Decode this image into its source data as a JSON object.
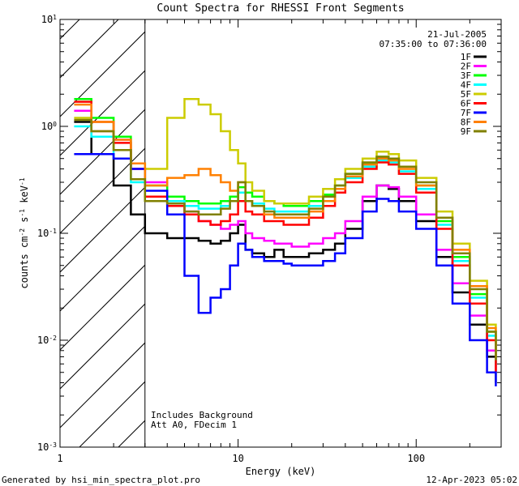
{
  "chart_data": {
    "type": "line",
    "title": "Count Spectra for RHESSI Front Segments",
    "xlabel": "Energy (keV)",
    "ylabel": "counts cm⁻² s⁻¹ keV⁻¹",
    "xscale": "log",
    "yscale": "log",
    "xlim": [
      1,
      300
    ],
    "ylim": [
      0.001,
      10
    ],
    "x_tick_labels": [
      "1",
      "10",
      "100"
    ],
    "y_tick_labels": [
      "10⁻³",
      "10⁻²",
      "10⁻¹",
      "10⁰",
      "10¹"
    ],
    "hatched_region_kev": [
      1,
      3
    ],
    "date": "21-Jul-2005",
    "time_range": "07:35:00 to 07:36:00",
    "legend_position": "top-right",
    "annotations": [
      "Includes Background",
      "Att A0, FDecim 1"
    ],
    "footer_left": "Generated by hsi_min_spectra_plot.pro",
    "footer_right": "12-Apr-2023 05:02",
    "series": [
      {
        "name": "1F",
        "color": "#000000",
        "x": [
          1.2,
          1.5,
          2,
          2.5,
          3,
          4,
          5,
          6,
          7,
          8,
          9,
          10,
          11,
          12,
          14,
          16,
          18,
          20,
          25,
          30,
          35,
          40,
          50,
          60,
          70,
          80,
          100,
          130,
          160,
          200,
          250,
          280
        ],
        "y": [
          1.1,
          0.55,
          0.28,
          0.15,
          0.1,
          0.09,
          0.09,
          0.085,
          0.08,
          0.085,
          0.1,
          0.12,
          0.07,
          0.065,
          0.06,
          0.07,
          0.06,
          0.06,
          0.065,
          0.07,
          0.08,
          0.11,
          0.2,
          0.28,
          0.26,
          0.2,
          0.13,
          0.06,
          0.028,
          0.014,
          0.007,
          0.004
        ]
      },
      {
        "name": "2F",
        "color": "#ff00ff",
        "x": [
          1.2,
          1.5,
          2,
          2.5,
          3,
          4,
          5,
          6,
          7,
          8,
          9,
          10,
          11,
          12,
          14,
          16,
          18,
          20,
          25,
          30,
          35,
          40,
          50,
          60,
          70,
          80,
          100,
          130,
          160,
          200,
          250,
          280
        ],
        "y": [
          1.4,
          0.9,
          0.75,
          0.4,
          0.3,
          0.19,
          0.16,
          0.13,
          0.12,
          0.11,
          0.12,
          0.13,
          0.1,
          0.09,
          0.085,
          0.08,
          0.08,
          0.075,
          0.08,
          0.09,
          0.1,
          0.13,
          0.22,
          0.28,
          0.27,
          0.22,
          0.15,
          0.07,
          0.034,
          0.017,
          0.008,
          0.005
        ]
      },
      {
        "name": "3F",
        "color": "#00ff00",
        "x": [
          1.2,
          1.5,
          2,
          2.5,
          3,
          4,
          5,
          6,
          7,
          8,
          9,
          10,
          11,
          12,
          14,
          16,
          18,
          20,
          25,
          30,
          35,
          40,
          50,
          60,
          70,
          80,
          100,
          130,
          160,
          200,
          250,
          280
        ],
        "y": [
          1.8,
          1.2,
          0.8,
          0.45,
          0.28,
          0.22,
          0.2,
          0.19,
          0.19,
          0.2,
          0.22,
          0.27,
          0.24,
          0.22,
          0.2,
          0.19,
          0.18,
          0.18,
          0.2,
          0.23,
          0.28,
          0.36,
          0.45,
          0.52,
          0.5,
          0.42,
          0.28,
          0.13,
          0.06,
          0.027,
          0.012,
          0.006
        ]
      },
      {
        "name": "4F",
        "color": "#00ffff",
        "x": [
          1.2,
          1.5,
          2,
          2.5,
          3,
          4,
          5,
          6,
          7,
          8,
          9,
          10,
          11,
          12,
          14,
          16,
          18,
          20,
          25,
          30,
          35,
          40,
          50,
          60,
          70,
          80,
          100,
          130,
          160,
          200,
          250,
          280
        ],
        "y": [
          1.0,
          0.8,
          0.5,
          0.3,
          0.2,
          0.2,
          0.18,
          0.17,
          0.17,
          0.18,
          0.2,
          0.24,
          0.2,
          0.19,
          0.17,
          0.16,
          0.16,
          0.16,
          0.18,
          0.22,
          0.26,
          0.33,
          0.42,
          0.48,
          0.46,
          0.38,
          0.26,
          0.12,
          0.055,
          0.025,
          0.011,
          0.006
        ]
      },
      {
        "name": "5F",
        "color": "#cccc00",
        "x": [
          1.2,
          1.5,
          2,
          2.5,
          3,
          4,
          5,
          6,
          7,
          8,
          9,
          10,
          11,
          12,
          14,
          16,
          18,
          20,
          25,
          30,
          35,
          40,
          50,
          60,
          70,
          80,
          100,
          130,
          160,
          200,
          250,
          280
        ],
        "y": [
          1.2,
          0.9,
          0.6,
          0.45,
          0.4,
          1.2,
          1.8,
          1.6,
          1.3,
          0.9,
          0.6,
          0.45,
          0.3,
          0.25,
          0.2,
          0.19,
          0.19,
          0.19,
          0.22,
          0.26,
          0.32,
          0.4,
          0.5,
          0.58,
          0.55,
          0.48,
          0.33,
          0.16,
          0.08,
          0.036,
          0.014,
          0.008
        ]
      },
      {
        "name": "6F",
        "color": "#ff0000",
        "x": [
          1.2,
          1.5,
          2,
          2.5,
          3,
          4,
          5,
          6,
          7,
          8,
          9,
          10,
          11,
          12,
          14,
          16,
          18,
          20,
          25,
          30,
          35,
          40,
          50,
          60,
          70,
          80,
          100,
          130,
          160,
          200,
          250,
          280
        ],
        "y": [
          1.7,
          1.1,
          0.7,
          0.4,
          0.22,
          0.18,
          0.15,
          0.13,
          0.12,
          0.13,
          0.15,
          0.2,
          0.16,
          0.15,
          0.13,
          0.13,
          0.12,
          0.12,
          0.14,
          0.18,
          0.24,
          0.3,
          0.4,
          0.46,
          0.44,
          0.36,
          0.24,
          0.11,
          0.05,
          0.022,
          0.01,
          0.005
        ]
      },
      {
        "name": "7F",
        "color": "#0000ff",
        "x": [
          1.2,
          1.5,
          2,
          2.5,
          3,
          4,
          5,
          6,
          7,
          8,
          9,
          10,
          11,
          12,
          14,
          16,
          18,
          20,
          25,
          30,
          35,
          40,
          50,
          60,
          70,
          80,
          100,
          130,
          160,
          200,
          250,
          280
        ],
        "y": [
          0.55,
          0.55,
          0.5,
          0.4,
          0.25,
          0.15,
          0.04,
          0.018,
          0.025,
          0.03,
          0.05,
          0.08,
          0.07,
          0.06,
          0.055,
          0.055,
          0.052,
          0.05,
          0.05,
          0.055,
          0.065,
          0.09,
          0.16,
          0.21,
          0.2,
          0.16,
          0.11,
          0.05,
          0.022,
          0.01,
          0.005,
          0.0037
        ]
      },
      {
        "name": "8F",
        "color": "#ff8000",
        "x": [
          1.2,
          1.5,
          2,
          2.5,
          3,
          4,
          5,
          6,
          7,
          8,
          9,
          10,
          11,
          12,
          14,
          16,
          18,
          20,
          25,
          30,
          35,
          40,
          50,
          60,
          70,
          80,
          100,
          130,
          160,
          200,
          250,
          280
        ],
        "y": [
          1.6,
          1.1,
          0.75,
          0.45,
          0.28,
          0.33,
          0.35,
          0.4,
          0.35,
          0.3,
          0.25,
          0.3,
          0.2,
          0.18,
          0.15,
          0.14,
          0.14,
          0.14,
          0.16,
          0.2,
          0.26,
          0.34,
          0.44,
          0.5,
          0.48,
          0.4,
          0.28,
          0.14,
          0.07,
          0.032,
          0.013,
          0.007
        ]
      },
      {
        "name": "9F",
        "color": "#808000",
        "x": [
          1.2,
          1.5,
          2,
          2.5,
          3,
          4,
          5,
          6,
          7,
          8,
          9,
          10,
          11,
          12,
          14,
          16,
          18,
          20,
          25,
          30,
          35,
          40,
          50,
          60,
          70,
          80,
          100,
          130,
          160,
          200,
          250,
          280
        ],
        "y": [
          1.15,
          0.9,
          0.6,
          0.32,
          0.2,
          0.19,
          0.16,
          0.15,
          0.15,
          0.17,
          0.2,
          0.3,
          0.2,
          0.18,
          0.16,
          0.15,
          0.15,
          0.15,
          0.17,
          0.22,
          0.28,
          0.36,
          0.46,
          0.52,
          0.5,
          0.42,
          0.3,
          0.14,
          0.065,
          0.03,
          0.012,
          0.0065
        ]
      }
    ]
  }
}
